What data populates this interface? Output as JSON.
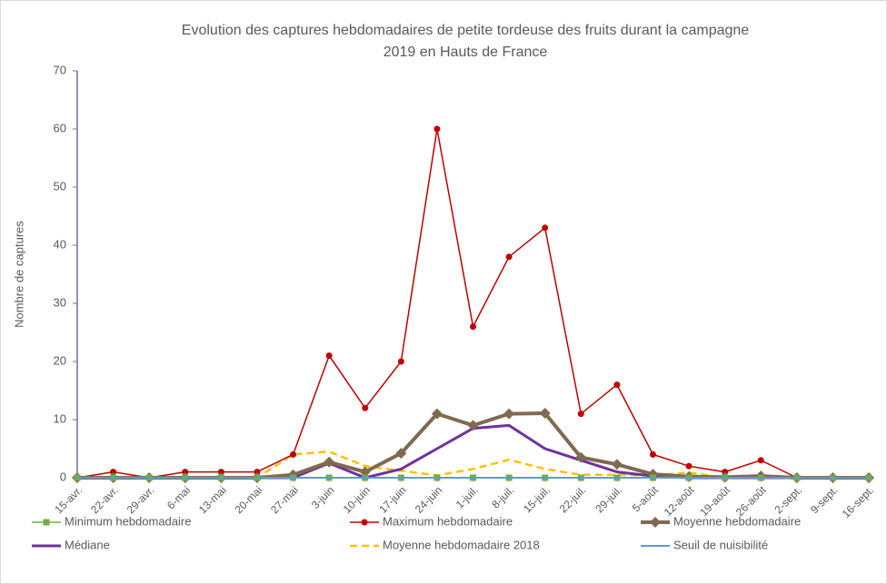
{
  "chart_data": {
    "type": "line",
    "title": [
      "Evolution des captures hebdomadaires de petite tordeuse des fruits durant la  campagne",
      "2019 en Hauts de France"
    ],
    "y_label": "Nombre de captures",
    "categories": [
      "15-avr.",
      "22-avr.",
      "29-avr.",
      "6-mai",
      "13-mai",
      "20-mai",
      "27-mai",
      "3-juin",
      "10-juin",
      "17-juin",
      "24-juin",
      "1-juil.",
      "8-juil.",
      "15-juil.",
      "22-juil.",
      "29-juil.",
      "5-août",
      "12-août",
      "19-août",
      "26-août",
      "2-sept.",
      "9-sept.",
      "16-sept."
    ],
    "ylim": [
      0,
      70
    ],
    "yticks": [
      0,
      10,
      20,
      30,
      40,
      50,
      60,
      70
    ],
    "grid": false,
    "legend": "bottom",
    "series": [
      {
        "name": "Minimum hebdomadaire",
        "color": "#70ad47",
        "marker": "square",
        "width": 1.5,
        "values": [
          0,
          0,
          0,
          0,
          0,
          0,
          0,
          0,
          0,
          0,
          0,
          0,
          0,
          0,
          0,
          0,
          0,
          0,
          0,
          0,
          0,
          0,
          0
        ]
      },
      {
        "name": "Maximum hebdomadaire",
        "color": "#c00000",
        "marker": "circle",
        "width": 1.5,
        "values": [
          0,
          1,
          0,
          1,
          1,
          1,
          4,
          21,
          12,
          20,
          60,
          26,
          38,
          43,
          11,
          16,
          4,
          2,
          1,
          3,
          0,
          0,
          0
        ]
      },
      {
        "name": "Moyenne hebdomadaire",
        "color": "#7f6a4f",
        "marker": "diamond",
        "width": 4,
        "values": [
          0,
          0,
          0,
          0,
          0,
          0,
          0.5,
          2.7,
          1,
          4.2,
          11,
          9,
          11,
          11.1,
          3.5,
          2.3,
          0.6,
          0.2,
          0.1,
          0.3,
          0,
          0,
          0
        ]
      },
      {
        "name": "Médiane",
        "color": "#7030a0",
        "marker": "none",
        "width": 3,
        "values": [
          0,
          0,
          0,
          0,
          0,
          0,
          0,
          2.5,
          0,
          1.5,
          5,
          8.5,
          9,
          5,
          3,
          1,
          0.3,
          0,
          0,
          0,
          0,
          0,
          0
        ]
      },
      {
        "name": "Moyenne hebdomadaire 2018",
        "color": "#ffc000",
        "marker": "none",
        "width": 2.5,
        "dash": true,
        "values": [
          0,
          0,
          0,
          0,
          0,
          0,
          4,
          4.5,
          2,
          1.2,
          0.4,
          1.5,
          3.1,
          1.5,
          0.5,
          0.5,
          0.4,
          0.9,
          0,
          0.2,
          0,
          0,
          0
        ]
      },
      {
        "name": "Seuil de nuisibilité",
        "color": "#5b9bd5",
        "marker": "none",
        "width": 2,
        "values": [
          0,
          0,
          0,
          0,
          0,
          0,
          0,
          0,
          0,
          0,
          0,
          0,
          0,
          0,
          0,
          0,
          0,
          0,
          0,
          0,
          0,
          0,
          0
        ]
      }
    ]
  }
}
